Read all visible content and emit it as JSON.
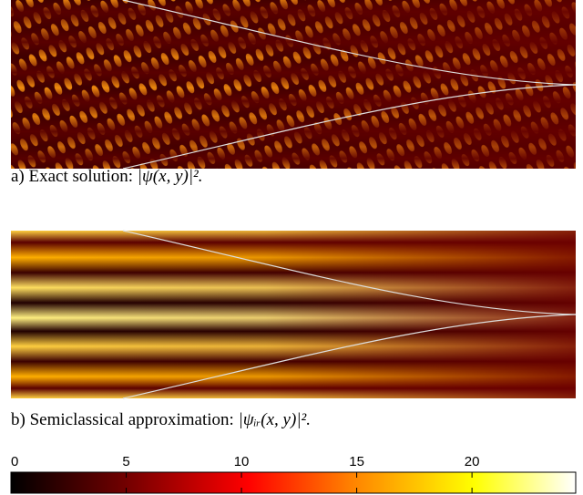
{
  "panels": [
    {
      "label": "a) Exact solution:",
      "math": "|ψ(x, y)|²."
    },
    {
      "label": "b) Semiclassical approximation:",
      "math": "|ψᵢᵣ(x, y)|²."
    }
  ],
  "colorbar": {
    "lim": [
      0,
      24.5
    ],
    "ticks": [
      0,
      5,
      10,
      15,
      20
    ]
  }
}
